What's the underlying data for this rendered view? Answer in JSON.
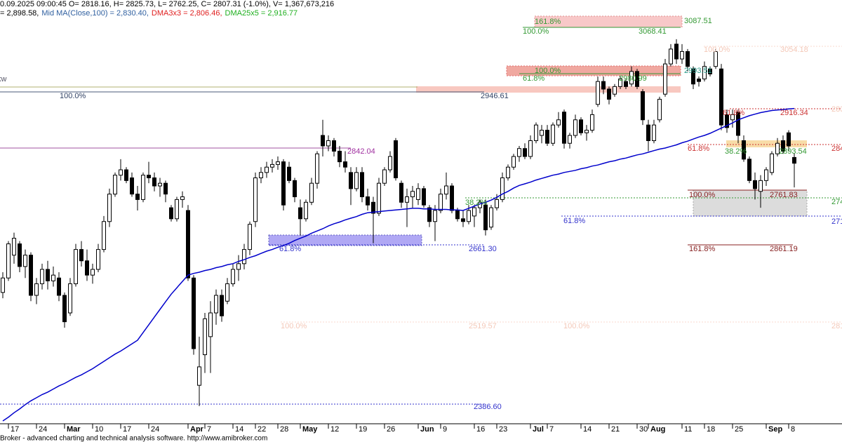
{
  "header": [
    {
      "text": "0.09.2025 09:00:45 O= 2818.16, H= 2825.73, L= 2762.25, C= 2807.31 (-1.0%), V= 1,367,673,216",
      "color": "#000000"
    },
    {
      "text": "= 2,898.58,",
      "color": "#000000"
    },
    {
      "text": "Mid MA(Close,100) = 2,830.40,",
      "color": "#3060a0"
    },
    {
      "text": "DMA3x3 = 2,806.46,",
      "color": "#e02020"
    },
    {
      "text": "DMA25x5 = 2,916.77",
      "color": "#20b020"
    }
  ],
  "footer": "Broker - advanced charting and technical analysis software. http://www.amibroker.com",
  "chart_data": {
    "type": "candlestick",
    "log_scale": true,
    "ylim": [
      2363,
      3131
    ],
    "up_color": "#ffffff",
    "down_color": "#000000",
    "categories": [
      null,
      "17",
      null,
      null,
      null,
      null,
      "24",
      null,
      null,
      null,
      null,
      "Mar",
      null,
      null,
      null,
      null,
      "10",
      null,
      null,
      null,
      null,
      "17",
      null,
      null,
      null,
      null,
      "24",
      null,
      null,
      null,
      null,
      null,
      null,
      "Apr",
      null,
      null,
      "7",
      null,
      null,
      null,
      null,
      "14",
      null,
      null,
      null,
      "22",
      null,
      null,
      null,
      "28",
      null,
      null,
      null,
      "May",
      null,
      null,
      null,
      null,
      "12",
      null,
      null,
      null,
      null,
      "19",
      null,
      null,
      null,
      null,
      "26",
      null,
      null,
      null,
      null,
      null,
      "Jun",
      null,
      null,
      null,
      "9",
      null,
      null,
      null,
      null,
      null,
      "16",
      null,
      null,
      null,
      "23",
      null,
      null,
      null,
      null,
      null,
      "Jul",
      null,
      null,
      "7",
      null,
      null,
      null,
      null,
      null,
      "14",
      null,
      null,
      null,
      null,
      "21",
      null,
      null,
      null,
      null,
      "30",
      null,
      "Aug",
      null,
      null,
      null,
      null,
      null,
      "11",
      null,
      null,
      null,
      "18",
      null,
      null,
      null,
      null,
      "25",
      null,
      null,
      null,
      null,
      null,
      "Sep",
      null,
      null,
      null,
      "8",
      null
    ],
    "candles": [
      [
        2575,
        2610,
        2565,
        2600
      ],
      [
        2600,
        2665,
        2595,
        2660
      ],
      [
        2640,
        2680,
        2625,
        2670
      ],
      [
        2660,
        2665,
        2610,
        2620
      ],
      [
        2620,
        2650,
        2600,
        2640
      ],
      [
        2640,
        2645,
        2560,
        2570
      ],
      [
        2570,
        2600,
        2555,
        2590
      ],
      [
        2590,
        2625,
        2580,
        2615
      ],
      [
        2615,
        2630,
        2580,
        2595
      ],
      [
        2595,
        2620,
        2585,
        2605
      ],
      [
        2600,
        2610,
        2560,
        2570
      ],
      [
        2570,
        2575,
        2515,
        2525
      ],
      [
        2540,
        2600,
        2535,
        2590
      ],
      [
        2590,
        2660,
        2585,
        2650
      ],
      [
        2650,
        2665,
        2620,
        2630
      ],
      [
        2630,
        2650,
        2595,
        2605
      ],
      [
        2605,
        2625,
        2590,
        2615
      ],
      [
        2615,
        2660,
        2610,
        2650
      ],
      [
        2650,
        2710,
        2645,
        2700
      ],
      [
        2700,
        2760,
        2690,
        2750
      ],
      [
        2750,
        2790,
        2745,
        2785
      ],
      [
        2785,
        2815,
        2775,
        2795
      ],
      [
        2795,
        2800,
        2770,
        2775
      ],
      [
        2780,
        2790,
        2745,
        2750
      ],
      [
        2750,
        2765,
        2720,
        2740
      ],
      [
        2740,
        2790,
        2735,
        2785
      ],
      [
        2785,
        2810,
        2770,
        2780
      ],
      [
        2780,
        2790,
        2755,
        2765
      ],
      [
        2765,
        2780,
        2745,
        2770
      ],
      [
        2770,
        2775,
        2735,
        2750
      ],
      [
        2725,
        2730,
        2700,
        2705
      ],
      [
        2705,
        2745,
        2700,
        2740
      ],
      [
        2740,
        2755,
        2725,
        2745
      ],
      [
        2720,
        2730,
        2595,
        2600
      ],
      [
        2600,
        2605,
        2470,
        2480
      ],
      [
        2420,
        2500,
        2386.6,
        2450
      ],
      [
        2470,
        2540,
        2440,
        2530
      ],
      [
        2500,
        2560,
        2440,
        2540
      ],
      [
        2540,
        2580,
        2520,
        2570
      ],
      [
        2570,
        2580,
        2525,
        2535
      ],
      [
        2560,
        2600,
        2555,
        2590
      ],
      [
        2590,
        2625,
        2585,
        2615
      ],
      [
        2615,
        2640,
        2595,
        2625
      ],
      [
        2625,
        2660,
        2615,
        2650
      ],
      [
        2650,
        2700,
        2640,
        2695
      ],
      [
        2700,
        2790,
        2690,
        2780
      ],
      [
        2780,
        2800,
        2770,
        2790
      ],
      [
        2790,
        2810,
        2780,
        2800
      ],
      [
        2800,
        2815,
        2790,
        2805
      ],
      [
        2805,
        2820,
        2795,
        2810
      ],
      [
        2810,
        2815,
        2720,
        2730
      ],
      [
        2800,
        2810,
        2770,
        2775
      ],
      [
        2775,
        2780,
        2735,
        2745
      ],
      [
        2725,
        2740,
        2675,
        2705
      ],
      [
        2705,
        2740,
        2700,
        2735
      ],
      [
        2735,
        2780,
        2730,
        2770
      ],
      [
        2770,
        2830,
        2760,
        2825
      ],
      [
        2860,
        2890,
        2820,
        2840
      ],
      [
        2840,
        2860,
        2830,
        2850
      ],
      [
        2850,
        2855,
        2820,
        2830
      ],
      [
        2830,
        2840,
        2800,
        2810
      ],
      [
        2810,
        2830,
        2790,
        2800
      ],
      [
        2790,
        2800,
        2730,
        2760
      ],
      [
        2760,
        2800,
        2755,
        2790
      ],
      [
        2790,
        2800,
        2735,
        2745
      ],
      [
        2745,
        2760,
        2720,
        2730
      ],
      [
        2735,
        2745,
        2661,
        2715
      ],
      [
        2715,
        2780,
        2710,
        2770
      ],
      [
        2770,
        2800,
        2765,
        2795
      ],
      [
        2795,
        2830,
        2790,
        2820
      ],
      [
        2850,
        2855,
        2775,
        2780
      ],
      [
        2770,
        2775,
        2725,
        2735
      ],
      [
        2735,
        2760,
        2690,
        2745
      ],
      [
        2745,
        2765,
        2725,
        2755
      ],
      [
        2740,
        2770,
        2730,
        2760
      ],
      [
        2760,
        2765,
        2725,
        2730
      ],
      [
        2725,
        2730,
        2690,
        2700
      ],
      [
        2700,
        2730,
        2665,
        2720
      ],
      [
        2720,
        2760,
        2715,
        2750
      ],
      [
        2750,
        2790,
        2740,
        2765
      ],
      [
        2765,
        2770,
        2715,
        2720
      ],
      [
        2720,
        2725,
        2700,
        2705
      ],
      [
        2705,
        2720,
        2690,
        2700
      ],
      [
        2700,
        2730,
        2695,
        2720
      ],
      [
        2710,
        2730,
        2690,
        2725
      ],
      [
        2725,
        2740,
        2715,
        2735
      ],
      [
        2730,
        2740,
        2675,
        2685
      ],
      [
        2690,
        2730,
        2685,
        2725
      ],
      [
        2725,
        2750,
        2720,
        2740
      ],
      [
        2740,
        2790,
        2735,
        2780
      ],
      [
        2780,
        2805,
        2775,
        2800
      ],
      [
        2800,
        2825,
        2795,
        2820
      ],
      [
        2820,
        2840,
        2810,
        2835
      ],
      [
        2835,
        2845,
        2815,
        2820
      ],
      [
        2820,
        2860,
        2815,
        2850
      ],
      [
        2850,
        2885,
        2845,
        2880
      ],
      [
        2860,
        2880,
        2845,
        2870
      ],
      [
        2870,
        2880,
        2840,
        2845
      ],
      [
        2845,
        2885,
        2840,
        2880
      ],
      [
        2880,
        2905,
        2875,
        2890
      ],
      [
        2905,
        2910,
        2835,
        2845
      ],
      [
        2845,
        2865,
        2835,
        2860
      ],
      [
        2860,
        2900,
        2855,
        2890
      ],
      [
        2890,
        2895,
        2860,
        2865
      ],
      [
        2865,
        2880,
        2850,
        2870
      ],
      [
        2870,
        2910,
        2865,
        2900
      ],
      [
        2920,
        2975,
        2915,
        2965
      ],
      [
        2965,
        2975,
        2940,
        2950
      ],
      [
        2950,
        2955,
        2920,
        2930
      ],
      [
        2940,
        2960,
        2935,
        2955
      ],
      [
        2955,
        2975,
        2950,
        2970
      ],
      [
        2965,
        2970,
        2950,
        2955
      ],
      [
        2960,
        2995,
        2955,
        2985
      ],
      [
        2985,
        2990,
        2950,
        2955
      ],
      [
        2945,
        2950,
        2880,
        2890
      ],
      [
        2880,
        2890,
        2830,
        2850
      ],
      [
        2850,
        2890,
        2845,
        2880
      ],
      [
        2890,
        2935,
        2885,
        2930
      ],
      [
        2940,
        3010,
        2935,
        3000
      ],
      [
        3000,
        3040,
        2995,
        3030
      ],
      [
        3040,
        3050,
        3000,
        3010
      ],
      [
        3010,
        3040,
        3000,
        3025
      ],
      [
        3025,
        3030,
        2985,
        2995
      ],
      [
        2990,
        2995,
        2950,
        2960
      ],
      [
        2970,
        2975,
        2955,
        2965
      ],
      [
        2970,
        3005,
        2965,
        2995
      ],
      [
        2990,
        2995,
        2975,
        2980
      ],
      [
        2995,
        3030,
        2990,
        3025
      ],
      [
        2990,
        3000,
        2870,
        2880
      ],
      [
        2900,
        2910,
        2865,
        2875
      ],
      [
        2890,
        2910,
        2875,
        2900
      ],
      [
        2905,
        2910,
        2845,
        2860
      ],
      [
        2850,
        2860,
        2810,
        2815
      ],
      [
        2815,
        2820,
        2770,
        2775
      ],
      [
        2775,
        2790,
        2740,
        2760
      ],
      [
        2755,
        2785,
        2725,
        2775
      ],
      [
        2775,
        2800,
        2765,
        2795
      ],
      [
        2790,
        2830,
        2785,
        2825
      ],
      [
        2825,
        2855,
        2820,
        2845
      ],
      [
        2850,
        2860,
        2825,
        2830
      ],
      [
        2865,
        2870,
        2830,
        2840
      ],
      [
        2818.16,
        2825.73,
        2762.25,
        2807.31
      ]
    ],
    "ma": {
      "color": "#0000cc",
      "values": [
        2363,
        2369,
        2376,
        2382,
        2389,
        2395,
        2400,
        2405,
        2409,
        2414,
        2419,
        2423,
        2428,
        2433,
        2437,
        2442,
        2447,
        2453,
        2459,
        2465,
        2471,
        2476,
        2482,
        2488,
        2494,
        2507,
        2520,
        2533,
        2546,
        2559,
        2572,
        2583,
        2594,
        2605,
        2608,
        2610,
        2613,
        2615,
        2618,
        2620,
        2623,
        2625,
        2629,
        2632,
        2636,
        2639,
        2643,
        2647,
        2650,
        2654,
        2657,
        2661,
        2666,
        2670,
        2674,
        2679,
        2683,
        2687,
        2692,
        2696,
        2699,
        2703,
        2706,
        2709,
        2713,
        2716,
        2717,
        2718,
        2719,
        2720,
        2721,
        2722,
        2723,
        2724,
        2724,
        2723,
        2723,
        2722,
        2722,
        2722,
        2721,
        2721,
        2720,
        2724,
        2728,
        2732,
        2735,
        2739,
        2744,
        2750,
        2755,
        2761,
        2766,
        2769,
        2772,
        2776,
        2779,
        2782,
        2785,
        2787,
        2790,
        2792,
        2794,
        2797,
        2799,
        2802,
        2804,
        2807,
        2810,
        2812,
        2815,
        2817,
        2820,
        2823,
        2825,
        2828,
        2831,
        2834,
        2836,
        2839,
        2842,
        2846,
        2849,
        2853,
        2857,
        2860,
        2864,
        2869,
        2874,
        2879,
        2884,
        2890,
        2894,
        2898,
        2901,
        2904,
        2906,
        2908,
        2909,
        2910,
        2911,
        2912
      ]
    }
  },
  "annotations": [
    {
      "text": "kw",
      "color": "#556"
    },
    {
      "text": "100.0%",
      "color": "#334466"
    },
    {
      "text": "2946.61",
      "color": "#334466"
    },
    {
      "text": "2842.04",
      "color": "#a030a0"
    },
    {
      "text": "61.8%",
      "color": "#3333cc"
    },
    {
      "text": "2661.30",
      "color": "#3333cc"
    },
    {
      "text": "2386.60",
      "color": "#3333cc"
    },
    {
      "text": "161.8%",
      "color": "#339933"
    },
    {
      "text": "3087.51",
      "color": "#339933"
    },
    {
      "text": "100.0%",
      "color": "#339933"
    },
    {
      "text": "3068.41",
      "color": "#339933"
    },
    {
      "text": "100.0%",
      "color": "#339933"
    },
    {
      "text": "61.8%",
      "color": "#339933"
    },
    {
      "text": "2980.99",
      "color": "#339933"
    },
    {
      "text": "2993.51",
      "color": "#2a9a8a"
    },
    {
      "text": "61.8%",
      "color": "#cc3333"
    },
    {
      "text": "2916.34",
      "color": "#cc3333"
    },
    {
      "text": "61.8%",
      "color": "#cc3333"
    },
    {
      "text": "38.2%",
      "color": "#339933"
    },
    {
      "text": "2893.54",
      "color": "#339933"
    },
    {
      "text": "38.2%",
      "color": "#339933"
    },
    {
      "text": "100.0%",
      "color": "#882222"
    },
    {
      "text": "2761.83",
      "color": "#882222"
    },
    {
      "text": "61.8%",
      "color": "#3333cc"
    },
    {
      "text": "161.8%",
      "color": "#882222"
    },
    {
      "text": "2861.19",
      "color": "#882222"
    },
    {
      "text": "100.0%",
      "color": "#f4c8b8"
    },
    {
      "text": "2519.57",
      "color": "#f4c8b8"
    },
    {
      "text": "100.0%",
      "color": "#f4c8b8"
    },
    {
      "text": "100.0%",
      "color": "#f4c8b8"
    },
    {
      "text": "3054.18",
      "color": "#f4c8b8"
    },
    {
      "text": "284",
      "color": "#cc3333"
    },
    {
      "text": "274",
      "color": "#339933"
    },
    {
      "text": "271",
      "color": "#3333cc"
    },
    {
      "text": "283",
      "color": "#f4c8b8"
    },
    {
      "text": "281",
      "color": "#f4c8b8"
    }
  ]
}
